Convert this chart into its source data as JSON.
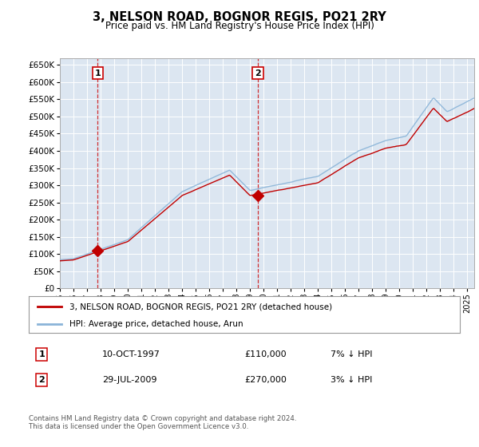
{
  "title": "3, NELSON ROAD, BOGNOR REGIS, PO21 2RY",
  "subtitle": "Price paid vs. HM Land Registry's House Price Index (HPI)",
  "hpi_color": "#8ab4d8",
  "price_color": "#c00000",
  "plot_bg_color": "#dce6f1",
  "ylim": [
    0,
    670000
  ],
  "yticks": [
    0,
    50000,
    100000,
    150000,
    200000,
    250000,
    300000,
    350000,
    400000,
    450000,
    500000,
    550000,
    600000,
    650000
  ],
  "sale1_x": 1997.78,
  "sale1_y": 110000,
  "sale1_label": "1",
  "sale2_x": 2009.57,
  "sale2_y": 270000,
  "sale2_label": "2",
  "legend_line1": "3, NELSON ROAD, BOGNOR REGIS, PO21 2RY (detached house)",
  "legend_line2": "HPI: Average price, detached house, Arun",
  "table_row1_num": "1",
  "table_row1_date": "10-OCT-1997",
  "table_row1_price": "£110,000",
  "table_row1_hpi": "7% ↓ HPI",
  "table_row2_num": "2",
  "table_row2_date": "29-JUL-2009",
  "table_row2_price": "£270,000",
  "table_row2_hpi": "3% ↓ HPI",
  "footnote": "Contains HM Land Registry data © Crown copyright and database right 2024.\nThis data is licensed under the Open Government Licence v3.0.",
  "xmin": 1995.0,
  "xmax": 2025.5
}
